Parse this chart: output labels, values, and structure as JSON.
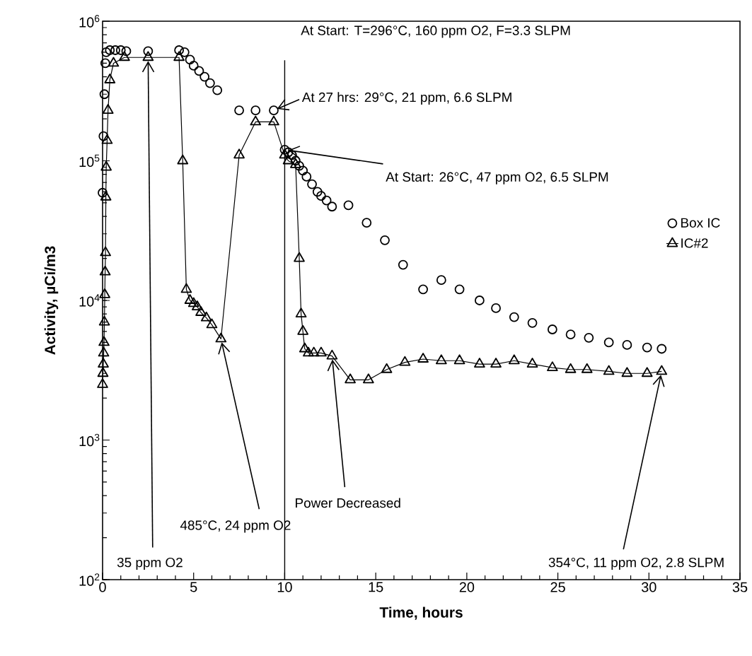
{
  "chart_data": {
    "type": "line",
    "xlabel": "Time,  hours",
    "ylabel": "Activity,  µCi/m3",
    "xlim": [
      0,
      35
    ],
    "xticks": [
      0,
      5,
      10,
      15,
      20,
      25,
      30,
      35
    ],
    "ylim": [
      100,
      1000000
    ],
    "yticks": [
      {
        "value": 100,
        "label": "10$^{2}$"
      },
      {
        "value": 1000,
        "label": "10$^{3}$"
      },
      {
        "value": 10000,
        "label": "10$^{4}$"
      },
      {
        "value": 100000,
        "label": "10$^{5}$"
      },
      {
        "value": 1000000,
        "label": "10$^{6}$"
      }
    ],
    "log": "y",
    "legend": "right",
    "series": [
      {
        "name": "Box IC",
        "type": "scatter",
        "marker": "circle",
        "color": "#000000",
        "x": [
          0.0,
          0.05,
          0.1,
          0.15,
          0.2,
          0.4,
          0.7,
          1.0,
          1.3,
          2.5,
          4.2,
          4.5,
          4.8,
          5.0,
          5.3,
          5.6,
          5.9,
          6.3,
          7.5,
          8.4,
          9.4,
          10.0,
          10.2,
          10.4,
          10.6,
          10.8,
          11.0,
          11.2,
          11.5,
          11.8,
          12.0,
          12.3,
          12.6,
          13.5,
          14.5,
          15.5,
          16.5,
          17.6,
          18.6,
          19.6,
          20.7,
          21.6,
          22.6,
          23.6,
          24.7,
          25.7,
          26.7,
          27.8,
          28.8,
          29.9,
          30.7
        ],
        "values": [
          59000,
          150000,
          300000,
          500000,
          600000,
          620000,
          620000,
          620000,
          610000,
          610000,
          620000,
          600000,
          530000,
          480000,
          440000,
          400000,
          360000,
          320000,
          230000,
          230000,
          230000,
          120000,
          115000,
          110000,
          100000,
          92000,
          85000,
          77000,
          68000,
          60000,
          56000,
          52000,
          47000,
          48000,
          36000,
          27000,
          18000,
          12000,
          14000,
          12000,
          10000,
          8800,
          7600,
          6900,
          6200,
          5700,
          5400,
          5000,
          4800,
          4600,
          4500
        ]
      },
      {
        "name": "IC#2",
        "marker": "triangle",
        "line_style": "solid",
        "color": "#000000",
        "x": [
          0.0,
          0.02,
          0.04,
          0.06,
          0.08,
          0.1,
          0.12,
          0.14,
          0.16,
          0.18,
          0.2,
          0.25,
          0.3,
          0.4,
          0.6,
          1.2,
          2.5,
          4.2,
          4.4,
          4.6,
          4.8,
          5.0,
          5.2,
          5.4,
          5.7,
          6.0,
          6.5,
          7.5,
          8.4,
          9.4,
          10.0,
          10.2,
          10.6,
          10.8,
          10.9,
          11.0,
          11.1,
          11.3,
          11.6,
          12.0,
          12.6,
          13.6,
          14.6,
          15.6,
          16.6,
          17.6,
          18.6,
          19.6,
          20.7,
          21.6,
          22.6,
          23.6,
          24.7,
          25.7,
          26.6,
          27.8,
          28.8,
          29.9,
          30.7
        ],
        "values": [
          2500,
          3000,
          3500,
          4200,
          5000,
          7000,
          11000,
          16000,
          22000,
          55000,
          90000,
          140000,
          230000,
          380000,
          500000,
          550000,
          550000,
          550000,
          100000,
          12000,
          10000,
          9500,
          9000,
          8200,
          7500,
          6700,
          5300,
          110000,
          190000,
          190000,
          110000,
          100000,
          94000,
          20000,
          8000,
          6000,
          4500,
          4200,
          4200,
          4200,
          4000,
          2700,
          2700,
          3200,
          3600,
          3800,
          3700,
          3700,
          3500,
          3500,
          3700,
          3500,
          3300,
          3200,
          3200,
          3100,
          3000,
          3000,
          3100
        ]
      }
    ],
    "ref_lines": [
      {
        "axis": "x",
        "value": 10
      }
    ],
    "annotations": [
      "At Start: T=296°C, 160 ppm O2, F=3.3 SLPM",
      {
        "text": "At 27 hrs: 29°C, 21 ppm, 6.6 SLPM",
        "x": 9.4,
        "y": 230000
      },
      {
        "text": "At Start: 26°C, 47 ppm O2, 6.5 SLPM",
        "x": 10.0,
        "y": 120000
      },
      {
        "text": "35 ppm O2",
        "x": 2.5,
        "y": 550000
      },
      {
        "text": "485°C, 24 ppm O2",
        "x": 6.5,
        "y": 5300
      },
      {
        "text": "Power Decreased",
        "x": 12.6,
        "y": 4000
      },
      {
        "text": "354°C, 11 ppm O2, 2.8 SLPM",
        "x": 30.7,
        "y": 3100
      }
    ]
  }
}
